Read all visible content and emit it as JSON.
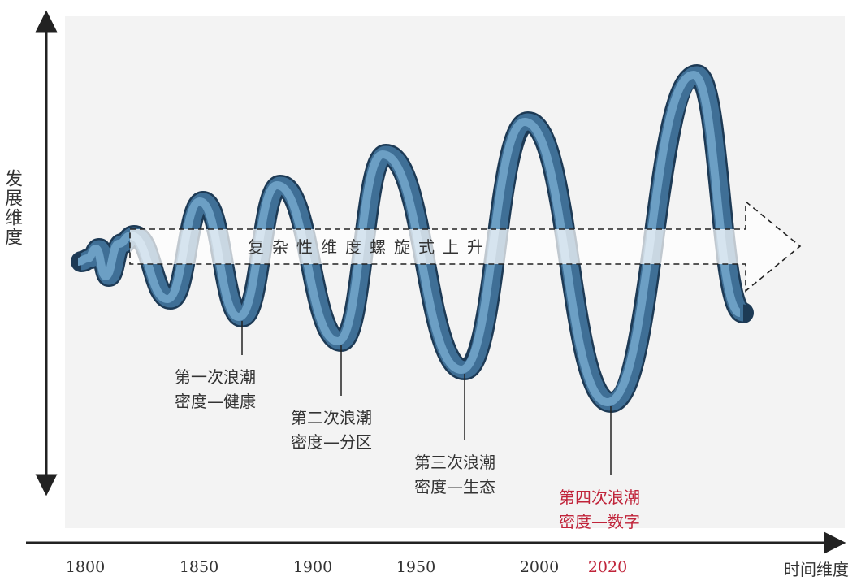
{
  "y_axis": {
    "label": "发展维度"
  },
  "x_axis": {
    "label": "时间维度",
    "ticks": [
      "1800",
      "1850",
      "1900",
      "1950",
      "2000",
      "2020"
    ]
  },
  "arrow": {
    "label": "复杂性维度螺旋式上升"
  },
  "waves": [
    {
      "line1": "第一次浪潮",
      "line2": "密度—健康"
    },
    {
      "line1": "第二次浪潮",
      "line2": "密度—分区"
    },
    {
      "line1": "第三次浪潮",
      "line2": "密度—生态"
    },
    {
      "line1": "第四次浪潮",
      "line2": "密度—数字"
    }
  ]
}
